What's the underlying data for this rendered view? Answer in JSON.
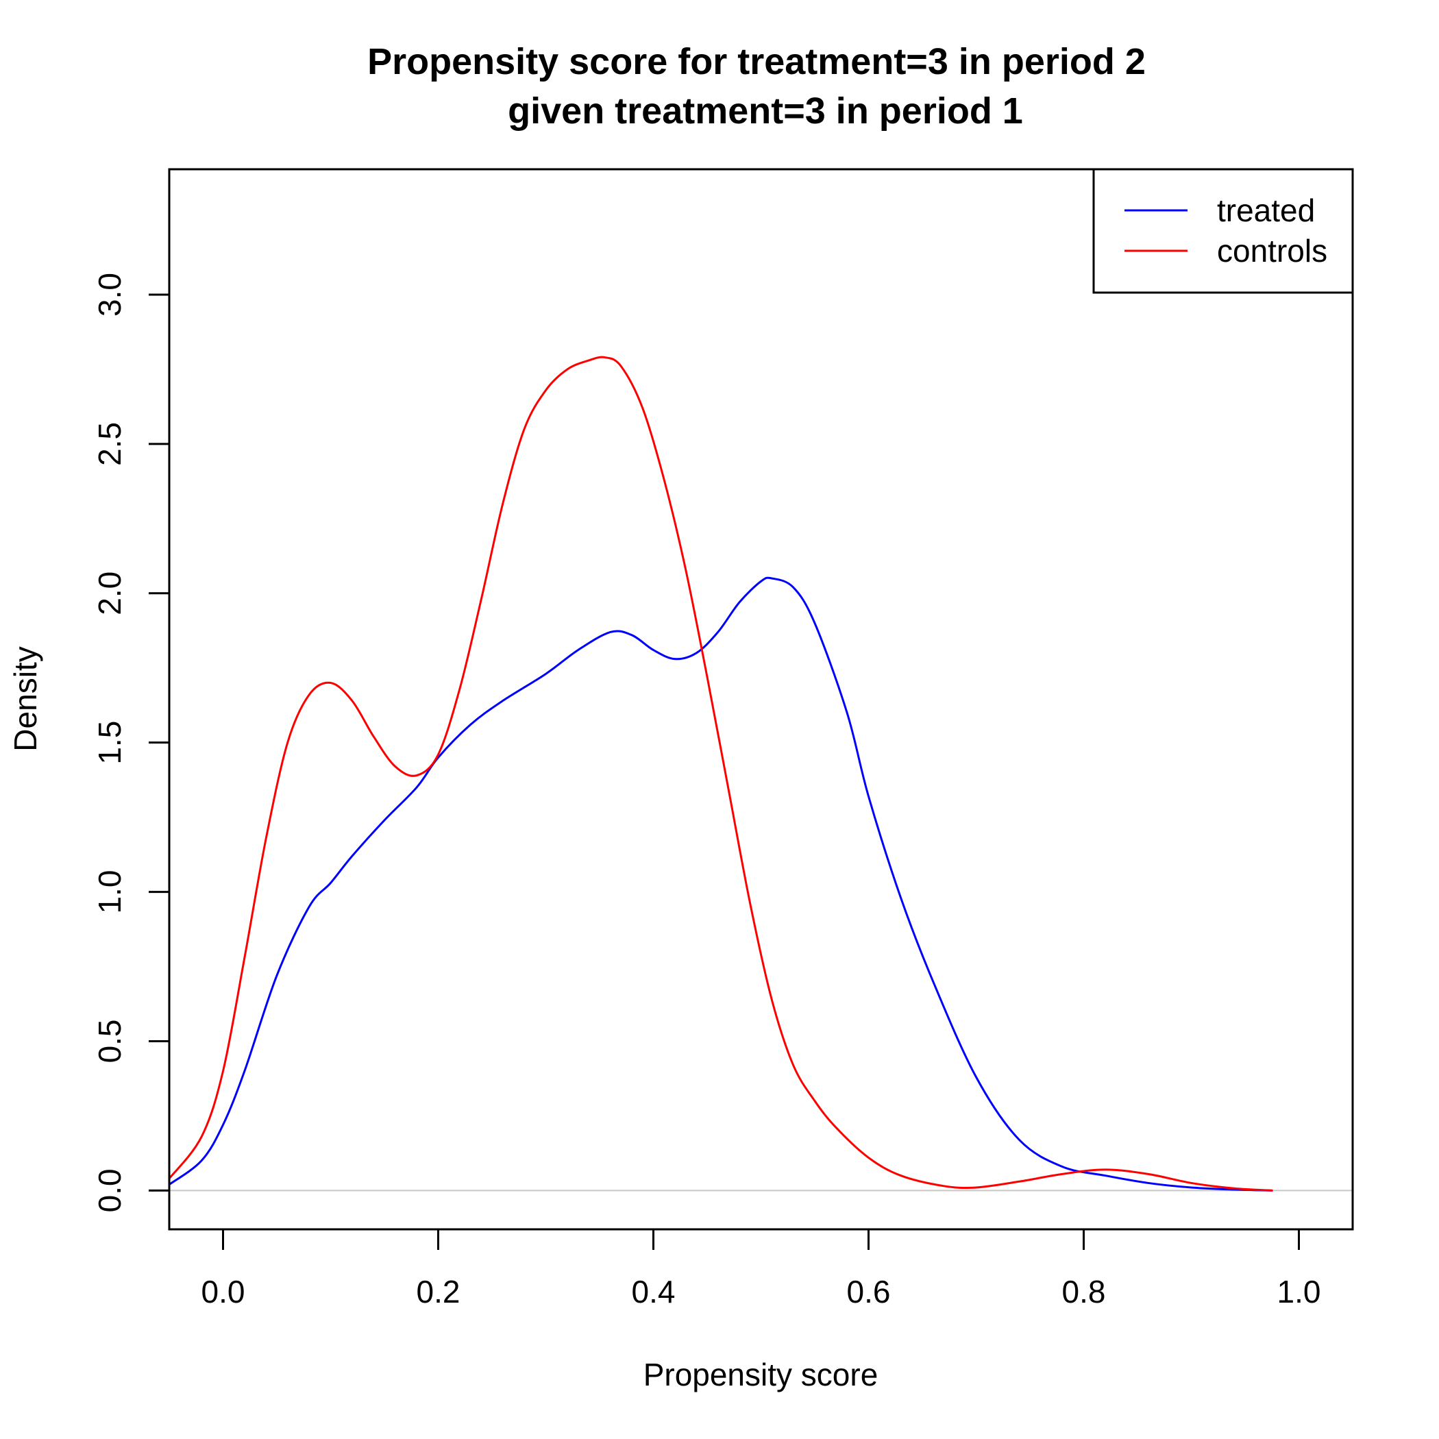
{
  "chart_data": {
    "type": "line",
    "title_line1": "Propensity score for treatment=3 in period 2",
    "title_line2": "given treatment=3 in period 1",
    "xlabel": "Propensity score",
    "ylabel": "Density",
    "xlim": [
      -0.05,
      1.05
    ],
    "ylim": [
      -0.13,
      3.42
    ],
    "x_ticks": [
      0.0,
      0.2,
      0.4,
      0.6,
      0.8,
      1.0
    ],
    "x_tick_labels": [
      "0.0",
      "0.2",
      "0.4",
      "0.6",
      "0.8",
      "1.0"
    ],
    "y_ticks": [
      0.0,
      0.5,
      1.0,
      1.5,
      2.0,
      2.5,
      3.0
    ],
    "y_tick_labels": [
      "0.0",
      "0.5",
      "1.0",
      "1.5",
      "2.0",
      "2.5",
      "3.0"
    ],
    "legend_position": "top-right",
    "zero_line": true,
    "series": [
      {
        "name": "treated",
        "color": "#0000ff",
        "x": [
          -0.05,
          -0.02,
          0.0,
          0.02,
          0.05,
          0.08,
          0.1,
          0.12,
          0.15,
          0.18,
          0.2,
          0.23,
          0.26,
          0.3,
          0.33,
          0.36,
          0.38,
          0.4,
          0.42,
          0.44,
          0.46,
          0.48,
          0.5,
          0.51,
          0.53,
          0.55,
          0.58,
          0.6,
          0.63,
          0.66,
          0.7,
          0.74,
          0.78,
          0.82,
          0.86,
          0.9,
          0.94,
          0.975
        ],
        "y": [
          0.02,
          0.1,
          0.22,
          0.4,
          0.72,
          0.95,
          1.03,
          1.12,
          1.24,
          1.35,
          1.45,
          1.56,
          1.64,
          1.73,
          1.81,
          1.87,
          1.86,
          1.81,
          1.78,
          1.8,
          1.87,
          1.97,
          2.04,
          2.05,
          2.02,
          1.9,
          1.6,
          1.32,
          0.98,
          0.7,
          0.38,
          0.17,
          0.08,
          0.05,
          0.025,
          0.01,
          0.003,
          0.0
        ]
      },
      {
        "name": "controls",
        "color": "#ff0000",
        "x": [
          -0.05,
          -0.02,
          0.0,
          0.02,
          0.04,
          0.06,
          0.08,
          0.1,
          0.12,
          0.14,
          0.16,
          0.18,
          0.2,
          0.22,
          0.24,
          0.26,
          0.28,
          0.3,
          0.32,
          0.34,
          0.355,
          0.37,
          0.39,
          0.41,
          0.43,
          0.45,
          0.47,
          0.49,
          0.51,
          0.53,
          0.55,
          0.57,
          0.6,
          0.63,
          0.67,
          0.7,
          0.74,
          0.78,
          0.82,
          0.86,
          0.9,
          0.94,
          0.975
        ],
        "y": [
          0.04,
          0.18,
          0.4,
          0.78,
          1.18,
          1.5,
          1.66,
          1.7,
          1.64,
          1.52,
          1.42,
          1.39,
          1.46,
          1.68,
          1.98,
          2.3,
          2.55,
          2.68,
          2.75,
          2.78,
          2.79,
          2.76,
          2.62,
          2.38,
          2.08,
          1.72,
          1.34,
          0.96,
          0.64,
          0.42,
          0.3,
          0.21,
          0.11,
          0.05,
          0.015,
          0.01,
          0.03,
          0.055,
          0.07,
          0.055,
          0.025,
          0.007,
          0.0
        ]
      }
    ]
  }
}
